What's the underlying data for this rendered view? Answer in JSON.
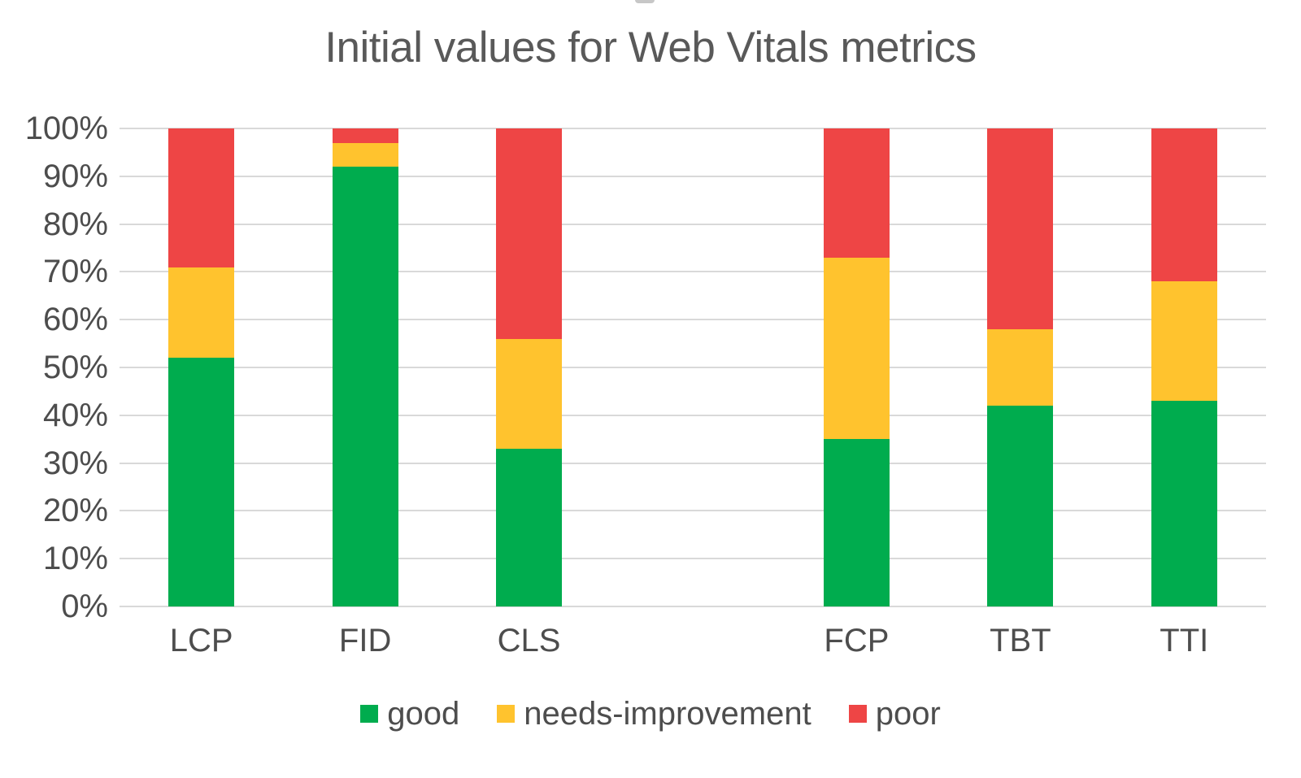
{
  "chart_data": {
    "type": "bar",
    "stacked": true,
    "title": "Initial values for Web Vitals metrics",
    "categories": [
      "LCP",
      "FID",
      "CLS",
      "",
      "FCP",
      "TBT",
      "TTI"
    ],
    "series": [
      {
        "name": "good",
        "color": "#00AC4E",
        "values": [
          52,
          92,
          33,
          null,
          35,
          42,
          43
        ]
      },
      {
        "name": "needs-improvement",
        "color": "#FFC32E",
        "values": [
          19,
          5,
          23,
          null,
          38,
          16,
          25
        ]
      },
      {
        "name": "poor",
        "color": "#EE4545",
        "values": [
          29,
          3,
          44,
          null,
          27,
          42,
          32
        ]
      }
    ],
    "xlabel": "",
    "ylabel": "",
    "ylim": [
      0,
      100
    ],
    "yticks": [
      "100%",
      "90%",
      "80%",
      "70%",
      "60%",
      "50%",
      "40%",
      "30%",
      "20%",
      "10%",
      "0%"
    ],
    "grid": true,
    "gridline_color": "#d9d9d9",
    "text_color": "#4d4d4d",
    "title_color": "#595959",
    "legend_position": "bottom"
  }
}
